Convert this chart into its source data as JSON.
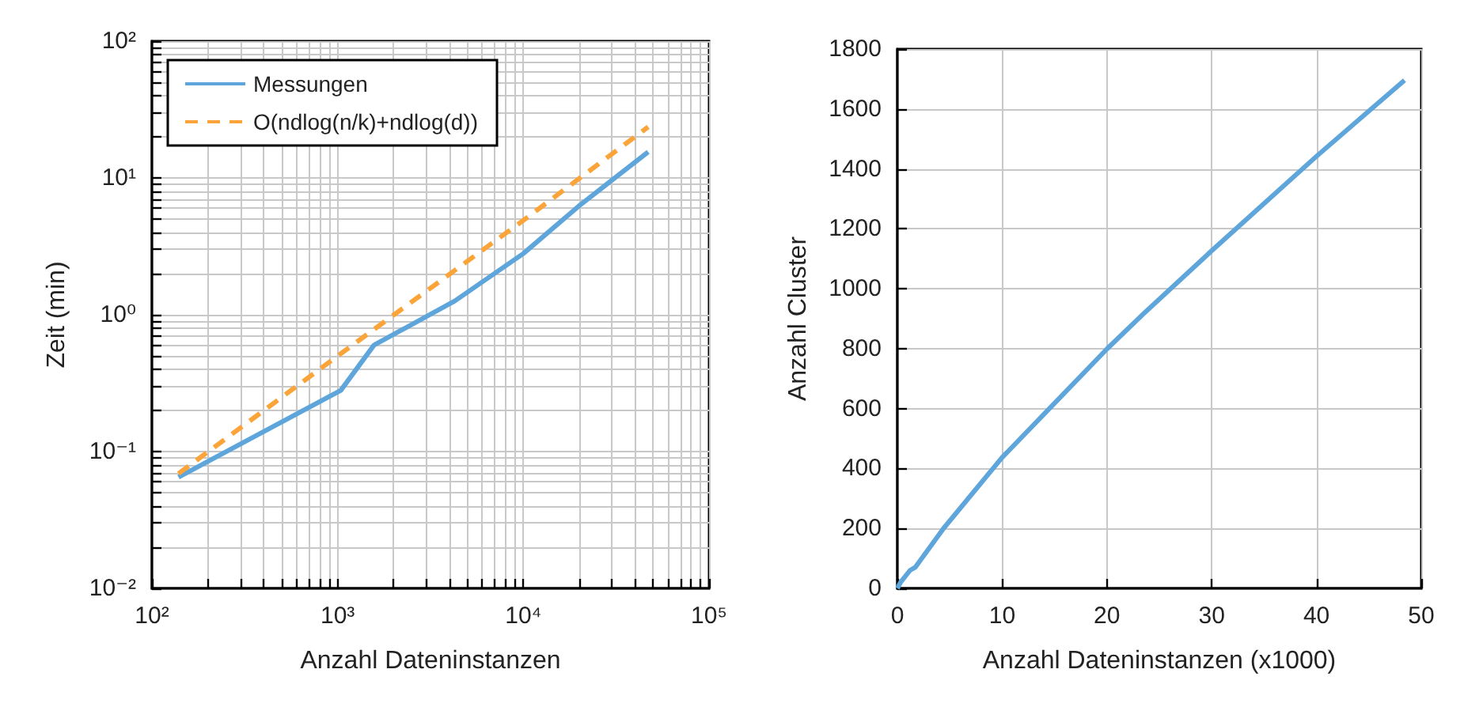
{
  "chart_data": [
    {
      "type": "line",
      "xlabel": "Anzahl Dateninstanzen",
      "ylabel": "Zeit (min)",
      "log": "xy",
      "grid": true,
      "legend": "top left",
      "xlim": [
        100,
        100000
      ],
      "ylim": [
        0.01,
        100
      ],
      "xticks": [
        {
          "value": 100,
          "label": "10²"
        },
        {
          "value": 200,
          "label": null
        },
        {
          "value": 300,
          "label": null
        },
        {
          "value": 400,
          "label": null
        },
        {
          "value": 500,
          "label": null
        },
        {
          "value": 600,
          "label": null
        },
        {
          "value": 700,
          "label": null
        },
        {
          "value": 800,
          "label": null
        },
        {
          "value": 900,
          "label": null
        },
        {
          "value": 1000,
          "label": "10³"
        },
        {
          "value": 2000,
          "label": null
        },
        {
          "value": 3000,
          "label": null
        },
        {
          "value": 4000,
          "label": null
        },
        {
          "value": 5000,
          "label": null
        },
        {
          "value": 6000,
          "label": null
        },
        {
          "value": 7000,
          "label": null
        },
        {
          "value": 8000,
          "label": null
        },
        {
          "value": 9000,
          "label": null
        },
        {
          "value": 10000,
          "label": "10⁴"
        },
        {
          "value": 20000,
          "label": null
        },
        {
          "value": 30000,
          "label": null
        },
        {
          "value": 40000,
          "label": null
        },
        {
          "value": 50000,
          "label": null
        },
        {
          "value": 60000,
          "label": null
        },
        {
          "value": 70000,
          "label": null
        },
        {
          "value": 80000,
          "label": null
        },
        {
          "value": 90000,
          "label": null
        },
        {
          "value": 100000,
          "label": "10⁵"
        }
      ],
      "yticks": [
        {
          "value": 0.01,
          "label": "10⁻²"
        },
        {
          "value": 0.02,
          "label": null
        },
        {
          "value": 0.03,
          "label": null
        },
        {
          "value": 0.04,
          "label": null
        },
        {
          "value": 0.05,
          "label": null
        },
        {
          "value": 0.06,
          "label": null
        },
        {
          "value": 0.07,
          "label": null
        },
        {
          "value": 0.08,
          "label": null
        },
        {
          "value": 0.09,
          "label": null
        },
        {
          "value": 0.1,
          "label": "10⁻¹"
        },
        {
          "value": 0.2,
          "label": null
        },
        {
          "value": 0.3,
          "label": null
        },
        {
          "value": 0.4,
          "label": null
        },
        {
          "value": 0.5,
          "label": null
        },
        {
          "value": 0.6,
          "label": null
        },
        {
          "value": 0.7,
          "label": null
        },
        {
          "value": 0.8,
          "label": null
        },
        {
          "value": 0.9,
          "label": null
        },
        {
          "value": 1,
          "label": "10⁰"
        },
        {
          "value": 2,
          "label": null
        },
        {
          "value": 3,
          "label": null
        },
        {
          "value": 4,
          "label": null
        },
        {
          "value": 5,
          "label": null
        },
        {
          "value": 6,
          "label": null
        },
        {
          "value": 7,
          "label": null
        },
        {
          "value": 8,
          "label": null
        },
        {
          "value": 9,
          "label": null
        },
        {
          "value": 10,
          "label": "10¹"
        },
        {
          "value": 20,
          "label": null
        },
        {
          "value": 30,
          "label": null
        },
        {
          "value": 40,
          "label": null
        },
        {
          "value": 50,
          "label": null
        },
        {
          "value": 60,
          "label": null
        },
        {
          "value": 70,
          "label": null
        },
        {
          "value": 80,
          "label": null
        },
        {
          "value": 90,
          "label": null
        },
        {
          "value": 100,
          "label": "10²"
        }
      ],
      "series": [
        {
          "name": "Messungen",
          "color": "#5da5da",
          "line_style": "solid",
          "x": [
            139,
            1040,
            1570,
            4270,
            10000,
            19800,
            47000
          ],
          "values": [
            0.065,
            0.28,
            0.6,
            1.26,
            2.8,
            6.2,
            15.5
          ]
        },
        {
          "name": "O(ndlog(n/k)+ndlog(d))",
          "color": "#faa43a",
          "line_style": "dashed",
          "x": [
            139,
            1000,
            10000,
            47000
          ],
          "values": [
            0.069,
            0.5,
            4.9,
            23.6
          ]
        }
      ]
    },
    {
      "type": "line",
      "xlabel": "Anzahl Dateninstanzen (x1000)",
      "ylabel": "Anzahl Cluster",
      "grid": true,
      "legend": false,
      "xlim": [
        0,
        50
      ],
      "ylim": [
        0,
        1800
      ],
      "xticks": [
        0,
        10,
        20,
        30,
        40,
        50
      ],
      "yticks": [
        0,
        200,
        400,
        600,
        800,
        1000,
        1200,
        1400,
        1600,
        1800
      ],
      "series": [
        {
          "color": "#5da5da",
          "line_style": "solid",
          "x": [
            0,
            0.3,
            1.2,
            1.7,
            4.4,
            10,
            20,
            23.5,
            30,
            40,
            48.4
          ],
          "values": [
            0,
            20,
            60,
            70,
            200,
            437,
            799,
            917,
            1127,
            1442,
            1696
          ]
        }
      ]
    }
  ]
}
